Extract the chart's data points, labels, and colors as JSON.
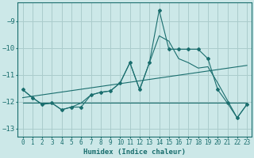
{
  "title": "",
  "xlabel": "Humidex (Indice chaleur)",
  "background_color": "#cce8e8",
  "grid_color": "#aacccc",
  "line_color": "#1a6e6e",
  "xlim": [
    -0.5,
    23.5
  ],
  "ylim": [
    -13.3,
    -8.3
  ],
  "yticks": [
    -13,
    -12,
    -11,
    -10,
    -9
  ],
  "xticks": [
    0,
    1,
    2,
    3,
    4,
    5,
    6,
    7,
    8,
    9,
    10,
    11,
    12,
    13,
    14,
    15,
    16,
    17,
    18,
    19,
    20,
    21,
    22,
    23
  ],
  "line1_x": [
    0,
    1,
    2,
    3,
    4,
    5,
    6,
    7,
    8,
    9,
    10,
    11,
    12,
    13,
    14,
    15,
    16,
    17,
    18,
    19,
    20,
    21,
    22,
    23
  ],
  "line1_y": [
    -11.55,
    -11.85,
    -12.1,
    -12.05,
    -12.3,
    -12.2,
    -12.2,
    -11.75,
    -11.65,
    -11.6,
    -11.3,
    -10.55,
    -11.55,
    -10.55,
    -8.6,
    -10.05,
    -10.05,
    -10.05,
    -10.05,
    -10.4,
    -11.55,
    -12.05,
    -12.6,
    -12.1
  ],
  "line2_x": [
    0,
    1,
    2,
    3,
    4,
    5,
    6,
    7,
    8,
    9,
    10,
    11,
    12,
    13,
    14,
    15,
    16,
    17,
    18,
    19,
    20,
    21,
    22,
    23
  ],
  "line2_y": [
    -11.55,
    -11.85,
    -12.1,
    -12.05,
    -12.3,
    -12.2,
    -12.05,
    -11.75,
    -11.65,
    -11.6,
    -11.3,
    -10.55,
    -11.55,
    -10.55,
    -9.55,
    -9.75,
    -10.4,
    -10.55,
    -10.75,
    -10.7,
    -11.3,
    -11.95,
    -12.6,
    -12.1
  ],
  "line3_x": [
    0,
    23
  ],
  "line3_y": [
    -12.05,
    -12.05
  ],
  "line4_x": [
    0,
    23
  ],
  "line4_y": [
    -11.85,
    -10.65
  ],
  "marker_color": "#1a6e6e"
}
